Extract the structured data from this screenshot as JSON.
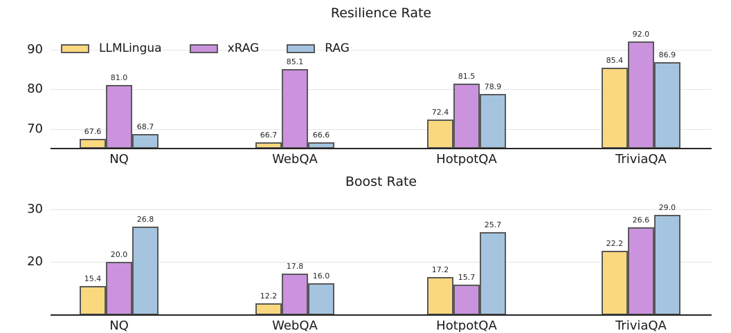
{
  "figure": {
    "background": "#ffffff",
    "text_color": "#1a1a1a",
    "gridline_color": "#e4e4e4",
    "axis_line_color": "#242424",
    "bar_edge_color": "#585858"
  },
  "legend": {
    "position": "upper-left-of-top-chart",
    "items": [
      {
        "label": "LLMLingua",
        "color": "#FAD87D"
      },
      {
        "label": "xRAG",
        "color": "#CB92DE"
      },
      {
        "label": "RAG",
        "color": "#A5C4DF"
      }
    ]
  },
  "chart_data": [
    {
      "type": "bar",
      "title": "Resilience Rate",
      "categories": [
        "NQ",
        "WebQA",
        "HotpotQA",
        "TriviaQA"
      ],
      "series": [
        {
          "name": "LLMLingua",
          "color": "#FAD87D",
          "values": [
            67.6,
            66.7,
            72.4,
            85.4
          ]
        },
        {
          "name": "xRAG",
          "color": "#CB92DE",
          "values": [
            81.0,
            85.1,
            81.5,
            92.0
          ]
        },
        {
          "name": "RAG",
          "color": "#A5C4DF",
          "values": [
            68.7,
            66.6,
            78.9,
            86.9
          ]
        }
      ],
      "yticks": [
        70,
        80,
        90
      ],
      "ylim": [
        65.1,
        95.5
      ],
      "grid": true,
      "value_labels": true,
      "legend_shown": true
    },
    {
      "type": "bar",
      "title": "Boost Rate",
      "categories": [
        "NQ",
        "WebQA",
        "HotpotQA",
        "TriviaQA"
      ],
      "series": [
        {
          "name": "LLMLingua",
          "color": "#FAD87D",
          "values": [
            15.4,
            12.2,
            17.2,
            22.2
          ]
        },
        {
          "name": "xRAG",
          "color": "#CB92DE",
          "values": [
            20.0,
            17.8,
            15.7,
            26.6
          ]
        },
        {
          "name": "RAG",
          "color": "#A5C4DF",
          "values": [
            26.8,
            16.0,
            25.7,
            29.0
          ]
        }
      ],
      "yticks": [
        20,
        30
      ],
      "ylim": [
        9.9,
        32.4
      ],
      "grid": true,
      "value_labels": true,
      "legend_shown": false
    }
  ]
}
